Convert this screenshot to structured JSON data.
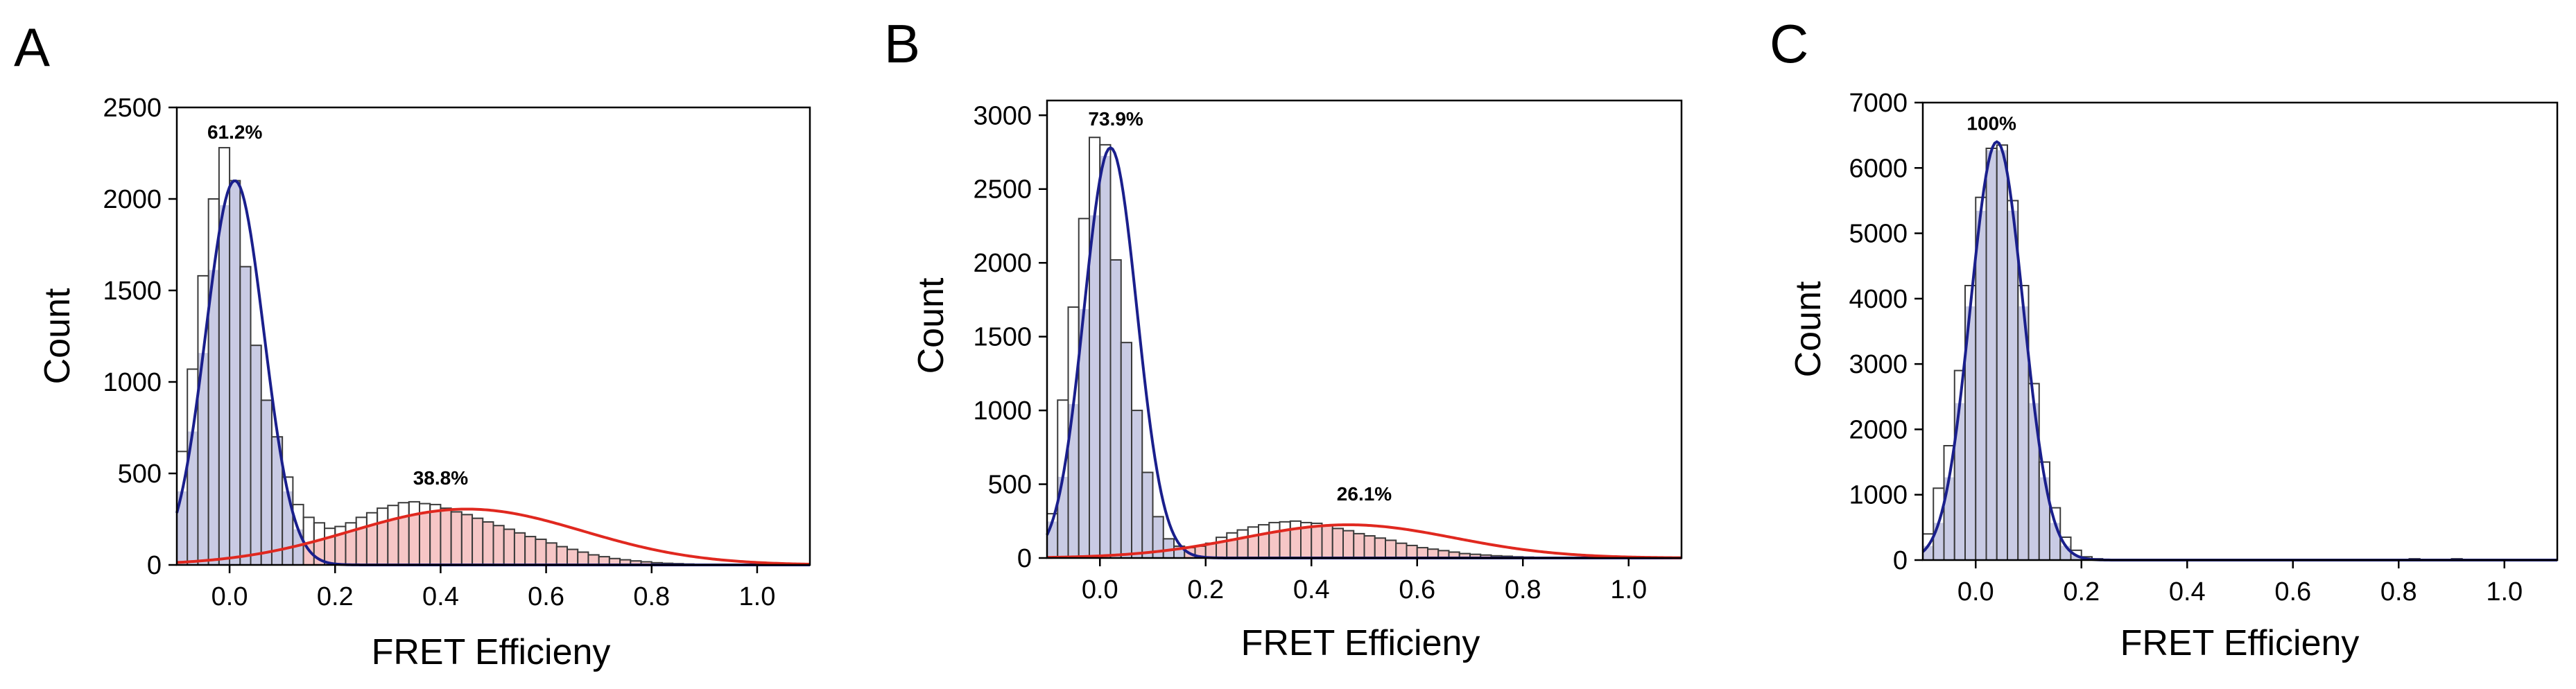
{
  "colors": {
    "histogram_edge": "#3a3a3a",
    "low_fret_fill": "#c9cbe4",
    "low_fret_curve": "#1a1f8c",
    "high_fret_fill": "#f6c6c6",
    "high_fret_curve": "#e0281f",
    "axis": "#000000"
  },
  "chart_data": [
    {
      "panel_label": "A",
      "type": "bar",
      "xlabel": "FRET Efficieny",
      "ylabel": "Count",
      "xlim": [
        -0.1,
        1.1
      ],
      "ylim": [
        0,
        2500
      ],
      "x_ticks": [
        "0.0",
        "0.2",
        "0.4",
        "0.6",
        "0.8",
        "1.0"
      ],
      "y_ticks": [
        "0",
        "500",
        "1000",
        "1500",
        "2000",
        "2500"
      ],
      "bin_width": 0.02,
      "histogram": {
        "bin_starts": [
          -0.1,
          -0.08,
          -0.06,
          -0.04,
          -0.02,
          0,
          0.02,
          0.04,
          0.06,
          0.08,
          0.1,
          0.12,
          0.14,
          0.16,
          0.18,
          0.2,
          0.22,
          0.24,
          0.26,
          0.28,
          0.3,
          0.32,
          0.34,
          0.36,
          0.38,
          0.4,
          0.42,
          0.44,
          0.46,
          0.48,
          0.5,
          0.52,
          0.54,
          0.56,
          0.58,
          0.6,
          0.62,
          0.64,
          0.66,
          0.68,
          0.7,
          0.72,
          0.74,
          0.76,
          0.78,
          0.8,
          0.82,
          0.84,
          0.86,
          0.88,
          0.9,
          0.92,
          0.94,
          0.96,
          0.98,
          1,
          1.02,
          1.04,
          1.06,
          1.08
        ],
        "counts": [
          620,
          1070,
          1580,
          2000,
          2280,
          2100,
          1630,
          1200,
          900,
          700,
          480,
          330,
          260,
          230,
          200,
          210,
          230,
          260,
          285,
          310,
          325,
          340,
          345,
          335,
          330,
          310,
          290,
          275,
          255,
          235,
          215,
          195,
          175,
          155,
          140,
          120,
          100,
          85,
          70,
          55,
          45,
          35,
          28,
          22,
          17,
          12,
          9,
          7,
          5,
          3,
          2,
          1,
          1,
          0,
          0,
          0,
          0,
          0,
          0,
          0
        ]
      },
      "components": [
        {
          "name": "61.2%",
          "label": "61.2%",
          "label_x": 0.01,
          "label_y": 2330,
          "center": 0.01,
          "sigma": 0.055,
          "amplitude": 2100
        },
        {
          "name": "38.8%",
          "label": "38.8%",
          "label_x": 0.4,
          "label_y": 440,
          "center": 0.45,
          "sigma": 0.22,
          "amplitude": 305
        }
      ]
    },
    {
      "panel_label": "B",
      "type": "bar",
      "xlabel": "FRET Efficieny",
      "ylabel": "Count",
      "xlim": [
        -0.1,
        1.1
      ],
      "ylim": [
        0,
        3100
      ],
      "x_ticks": [
        "0.0",
        "0.2",
        "0.4",
        "0.6",
        "0.8",
        "1.0"
      ],
      "y_ticks": [
        "0",
        "500",
        "1000",
        "1500",
        "2000",
        "2500",
        "3000"
      ],
      "bin_width": 0.02,
      "histogram": {
        "bin_starts": [
          -0.1,
          -0.08,
          -0.06,
          -0.04,
          -0.02,
          0,
          0.02,
          0.04,
          0.06,
          0.08,
          0.1,
          0.12,
          0.14,
          0.16,
          0.18,
          0.2,
          0.22,
          0.24,
          0.26,
          0.28,
          0.3,
          0.32,
          0.34,
          0.36,
          0.38,
          0.4,
          0.42,
          0.44,
          0.46,
          0.48,
          0.5,
          0.52,
          0.54,
          0.56,
          0.58,
          0.6,
          0.62,
          0.64,
          0.66,
          0.68,
          0.7,
          0.72,
          0.74,
          0.76,
          0.78,
          0.8,
          0.82,
          0.84,
          0.86,
          0.88,
          0.9,
          0.92,
          0.94,
          0.96,
          0.98,
          1,
          1.02,
          1.04,
          1.06,
          1.08
        ],
        "counts": [
          300,
          1070,
          1700,
          2300,
          2850,
          2800,
          2020,
          1460,
          1000,
          580,
          280,
          130,
          80,
          70,
          80,
          100,
          140,
          170,
          190,
          210,
          225,
          240,
          245,
          250,
          240,
          235,
          220,
          200,
          185,
          165,
          150,
          135,
          120,
          100,
          85,
          70,
          60,
          50,
          40,
          30,
          25,
          20,
          15,
          12,
          8,
          6,
          4,
          3,
          2,
          1,
          1,
          0,
          0,
          0,
          0,
          0,
          0,
          0,
          0,
          0
        ]
      },
      "components": [
        {
          "name": "73.9%",
          "label": "73.9%",
          "label_x": 0.03,
          "label_y": 2930,
          "center": 0.02,
          "sigma": 0.05,
          "amplitude": 2780
        },
        {
          "name": "26.1%",
          "label": "26.1%",
          "label_x": 0.5,
          "label_y": 390,
          "center": 0.47,
          "sigma": 0.2,
          "amplitude": 225
        }
      ]
    },
    {
      "panel_label": "C",
      "type": "bar",
      "xlabel": "FRET Efficieny",
      "ylabel": "Count",
      "xlim": [
        -0.1,
        1.1
      ],
      "ylim": [
        0,
        7000
      ],
      "x_ticks": [
        "0.0",
        "0.2",
        "0.4",
        "0.6",
        "0.8",
        "1.0"
      ],
      "y_ticks": [
        "0",
        "1000",
        "2000",
        "3000",
        "4000",
        "5000",
        "6000",
        "7000"
      ],
      "bin_width": 0.02,
      "histogram": {
        "bin_starts": [
          -0.1,
          -0.08,
          -0.06,
          -0.04,
          -0.02,
          0,
          0.02,
          0.04,
          0.06,
          0.08,
          0.1,
          0.12,
          0.14,
          0.16,
          0.18,
          0.2,
          0.22,
          0.24,
          0.26,
          0.28,
          0.3,
          0.32,
          0.34,
          0.36,
          0.38,
          0.4,
          0.42,
          0.44,
          0.46,
          0.48,
          0.5,
          0.52,
          0.54,
          0.56,
          0.58,
          0.6,
          0.62,
          0.64,
          0.66,
          0.68,
          0.7,
          0.72,
          0.74,
          0.76,
          0.78,
          0.8,
          0.82,
          0.84,
          0.86,
          0.88,
          0.9,
          0.92,
          0.94,
          0.96,
          0.98,
          1,
          1.02,
          1.04,
          1.06,
          1.08
        ],
        "counts": [
          400,
          1100,
          1750,
          2900,
          4200,
          5550,
          6300,
          6350,
          5500,
          4200,
          2700,
          1500,
          800,
          350,
          150,
          50,
          20,
          10,
          5,
          0,
          0,
          0,
          0,
          0,
          0,
          0,
          0,
          0,
          0,
          0,
          0,
          0,
          0,
          0,
          0,
          0,
          0,
          0,
          0,
          0,
          0,
          0,
          0,
          0,
          0,
          0,
          20,
          0,
          0,
          0,
          20,
          0,
          0,
          0,
          0,
          0,
          0,
          0,
          0,
          0
        ]
      },
      "components": [
        {
          "name": "100%",
          "label": "100%",
          "label_x": 0.03,
          "label_y": 6580,
          "center": 0.04,
          "sigma": 0.05,
          "amplitude": 6400
        }
      ]
    }
  ]
}
